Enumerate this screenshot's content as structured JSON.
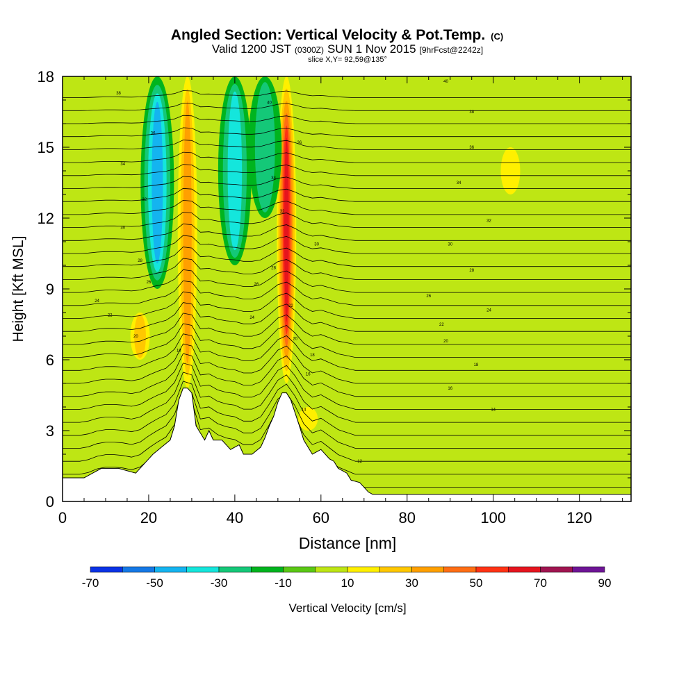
{
  "chart_data": {
    "type": "heatmap",
    "title": "Angled Section: Vertical Velocity & Pot.Temp.",
    "title_unit": "(C)",
    "subtitle": {
      "prefix": "Valid 1200 JST",
      "zulu": "(0300Z)",
      "date": "SUN 1 Nov 2015",
      "forecast": "[9hrFcst@2242z]"
    },
    "slice_label": "slice X,Y= 92,59@135°",
    "xlabel": "Distance [nm]",
    "ylabel": "Height [Kft MSL]",
    "xlim": [
      0,
      132
    ],
    "ylim": [
      0,
      18
    ],
    "x_ticks": [
      "0",
      "20",
      "40",
      "60",
      "80",
      "100",
      "120"
    ],
    "y_ticks": [
      "0",
      "3",
      "6",
      "9",
      "12",
      "15",
      "18"
    ],
    "colorbar": {
      "label": "Vertical Velocity [cm/s]",
      "tick_labels": [
        "-70",
        "-50",
        "-30",
        "-10",
        "10",
        "30",
        "50",
        "70",
        "90"
      ],
      "levels": [
        -70,
        -60,
        -50,
        -40,
        -30,
        -20,
        -10,
        0,
        10,
        20,
        30,
        40,
        50,
        60,
        70,
        80,
        90
      ],
      "colors": [
        "#0a32e6",
        "#1478e6",
        "#14b4f0",
        "#14e6dc",
        "#14c878",
        "#00b41e",
        "#5ac814",
        "#bee614",
        "#fff000",
        "#ffc800",
        "#ffa000",
        "#ff6e14",
        "#ff3214",
        "#e6141e",
        "#a01450",
        "#6e1496"
      ]
    },
    "series": [
      {
        "name": "Vertical Velocity",
        "regions": [
          {
            "type": "updraft",
            "x": 29,
            "y_range": [
              4.8,
              18
            ],
            "peak": 35
          },
          {
            "type": "updraft",
            "x": 52,
            "y_range": [
              5,
              18
            ],
            "peak": 60
          },
          {
            "type": "downdraft",
            "x": 22,
            "y_range": [
              9,
              18
            ],
            "peak": -40
          },
          {
            "type": "downdraft",
            "x": 40,
            "y_range": [
              10,
              18
            ],
            "peak": -35
          },
          {
            "type": "downdraft",
            "x": 47,
            "y_range": [
              12,
              18
            ],
            "peak": -25
          },
          {
            "type": "updraft",
            "x": 18,
            "y_range": [
              6,
              8
            ],
            "peak": 25
          },
          {
            "type": "updraft",
            "x": 57,
            "y_range": [
              3,
              4
            ],
            "peak": 15
          },
          {
            "type": "updraft",
            "x": 104,
            "y_range": [
              13,
              15
            ],
            "peak": 12
          }
        ]
      },
      {
        "name": "Pot.Temp.",
        "contour_labels": [
          {
            "text": "38",
            "x": 13,
            "y": 17.3
          },
          {
            "text": "36",
            "x": 21,
            "y": 15.6
          },
          {
            "text": "34",
            "x": 14,
            "y": 14.3
          },
          {
            "text": "32",
            "x": 19,
            "y": 12.8
          },
          {
            "text": "30",
            "x": 14,
            "y": 11.6
          },
          {
            "text": "28",
            "x": 18,
            "y": 10.2
          },
          {
            "text": "26",
            "x": 20,
            "y": 9.3
          },
          {
            "text": "24",
            "x": 8,
            "y": 8.5
          },
          {
            "text": "22",
            "x": 11,
            "y": 7.9
          },
          {
            "text": "20",
            "x": 17,
            "y": 7.0
          },
          {
            "text": "18",
            "x": 27,
            "y": 6.4
          },
          {
            "text": "40",
            "x": 48,
            "y": 16.9
          },
          {
            "text": "36",
            "x": 55,
            "y": 15.2
          },
          {
            "text": "34",
            "x": 49,
            "y": 13.7
          },
          {
            "text": "32",
            "x": 51,
            "y": 12.3
          },
          {
            "text": "30",
            "x": 59,
            "y": 10.9
          },
          {
            "text": "28",
            "x": 49,
            "y": 9.9
          },
          {
            "text": "26",
            "x": 45,
            "y": 9.2
          },
          {
            "text": "24",
            "x": 44,
            "y": 7.8
          },
          {
            "text": "22",
            "x": 53,
            "y": 8.3
          },
          {
            "text": "20",
            "x": 54,
            "y": 6.9
          },
          {
            "text": "18",
            "x": 58,
            "y": 6.2
          },
          {
            "text": "16",
            "x": 57,
            "y": 5.4
          },
          {
            "text": "14",
            "x": 56,
            "y": 3.9
          },
          {
            "text": "12",
            "x": 69,
            "y": 1.7
          },
          {
            "text": "40",
            "x": 89,
            "y": 17.8
          },
          {
            "text": "38",
            "x": 95,
            "y": 16.5
          },
          {
            "text": "36",
            "x": 95,
            "y": 15.0
          },
          {
            "text": "34",
            "x": 92,
            "y": 13.5
          },
          {
            "text": "32",
            "x": 99,
            "y": 11.9
          },
          {
            "text": "30",
            "x": 90,
            "y": 10.9
          },
          {
            "text": "28",
            "x": 95,
            "y": 9.8
          },
          {
            "text": "26",
            "x": 85,
            "y": 8.7
          },
          {
            "text": "24",
            "x": 99,
            "y": 8.1
          },
          {
            "text": "22",
            "x": 88,
            "y": 7.5
          },
          {
            "text": "20",
            "x": 89,
            "y": 6.8
          },
          {
            "text": "18",
            "x": 96,
            "y": 5.8
          },
          {
            "text": "16",
            "x": 90,
            "y": 4.8
          },
          {
            "text": "14",
            "x": 100,
            "y": 3.9
          }
        ]
      },
      {
        "name": "Terrain",
        "x": [
          0,
          5,
          9,
          13,
          17,
          19,
          21,
          23,
          25,
          26,
          27,
          28,
          29,
          30,
          31,
          33,
          34,
          35,
          37,
          39,
          41,
          42,
          44,
          46,
          47,
          48,
          49,
          50,
          51,
          52,
          53,
          55,
          56,
          57,
          58,
          60,
          62,
          63,
          64,
          66,
          67,
          69,
          70,
          71,
          72,
          132
        ],
        "y": [
          1.0,
          1.0,
          1.4,
          1.4,
          1.2,
          1.6,
          2.0,
          2.3,
          2.6,
          3.2,
          4.3,
          4.8,
          4.8,
          4.6,
          3.2,
          2.6,
          3.0,
          2.6,
          2.6,
          2.2,
          2.4,
          2.0,
          2.0,
          2.3,
          2.7,
          3.2,
          3.6,
          4.2,
          4.6,
          4.6,
          4.3,
          3.2,
          2.6,
          2.3,
          2.0,
          2.2,
          1.8,
          1.7,
          1.4,
          1.2,
          0.9,
          0.8,
          0.6,
          0.4,
          0.3,
          0.3
        ]
      }
    ]
  }
}
